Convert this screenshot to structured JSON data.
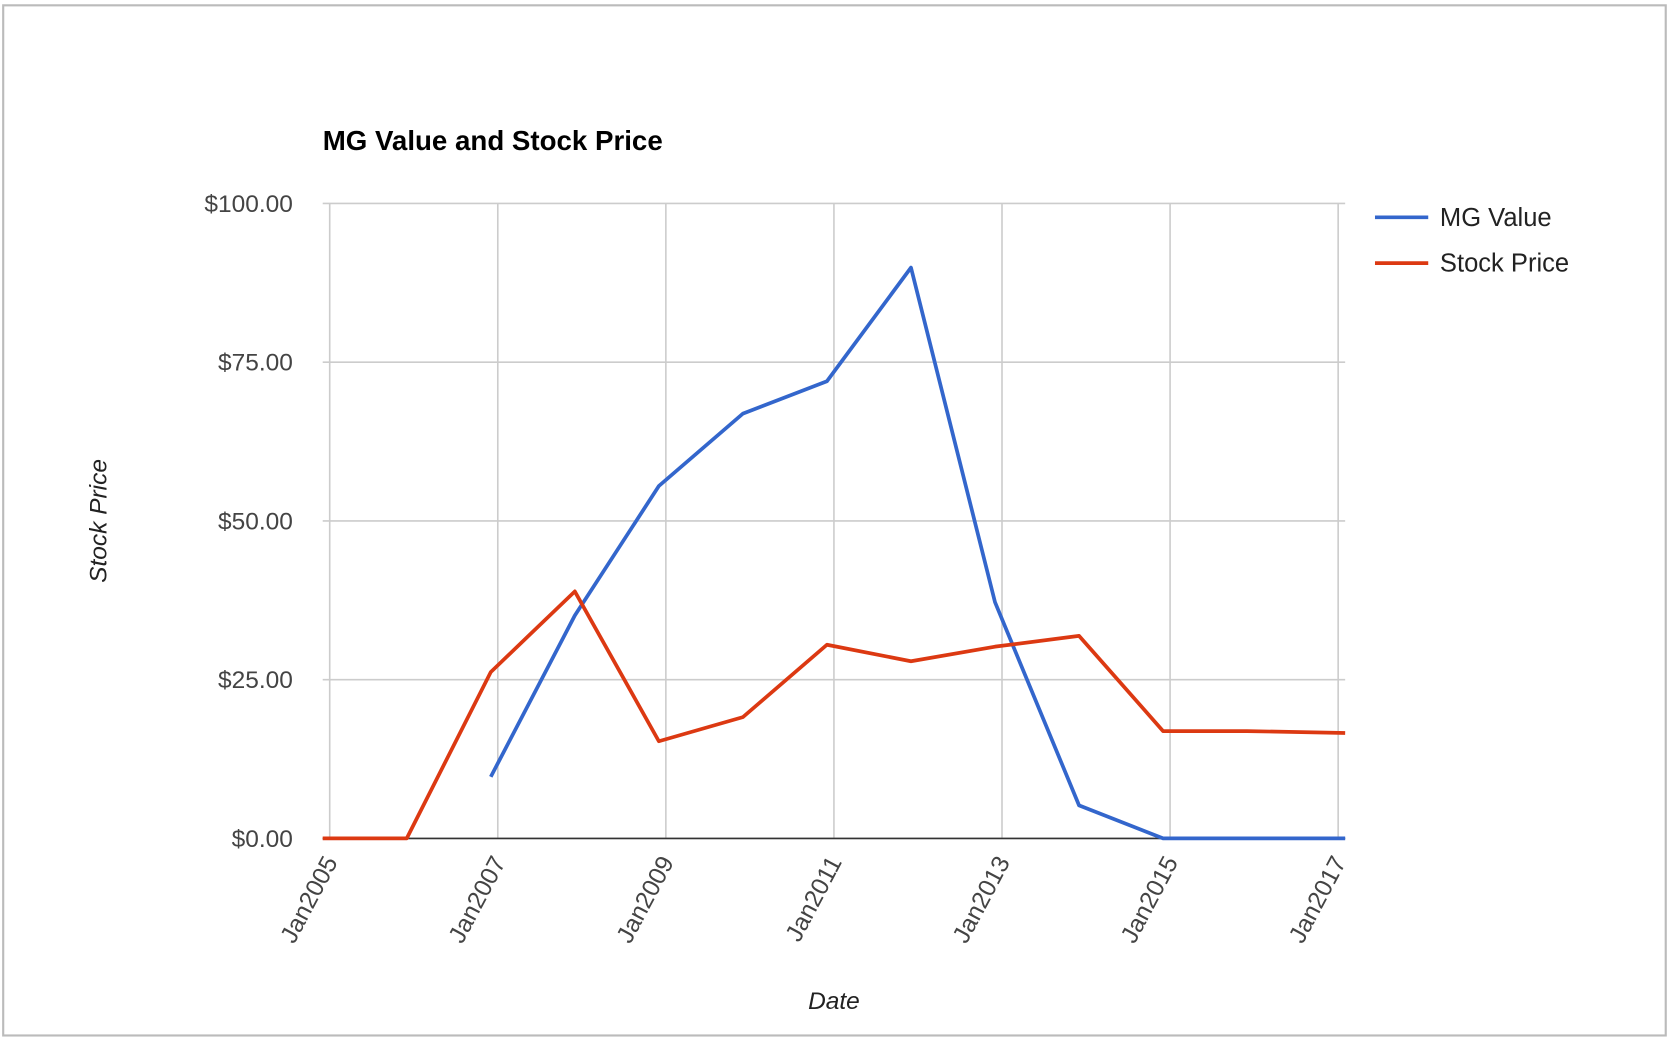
{
  "chart_data": {
    "type": "line",
    "title": "MG Value and Stock Price",
    "x_label": "Date",
    "y_label": "Stock Price",
    "x": [
      "2004-12",
      "2005-12",
      "2006-12",
      "2007-12",
      "2008-12",
      "2009-12",
      "2010-12",
      "2011-12",
      "2012-12",
      "2013-12",
      "2014-12",
      "2015-12",
      "2017-02"
    ],
    "series": [
      {
        "name": "MG Value",
        "color": "#3366cc",
        "values": [
          null,
          null,
          9.7,
          35.1,
          55.5,
          66.9,
          72,
          89.9,
          37.2,
          5.2,
          0,
          0,
          0
        ]
      },
      {
        "name": "Stock Price",
        "color": "#dc3912",
        "values": [
          0,
          0,
          26.2,
          38.9,
          15.3,
          19.1,
          30.5,
          27.9,
          30.2,
          31.9,
          16.9,
          16.9,
          16.6
        ]
      }
    ],
    "xlim": [
      "2004-12",
      "2017-02"
    ],
    "xticks": [
      {
        "value": "2005-01",
        "label": "Jan2005"
      },
      {
        "value": "2007-01",
        "label": "Jan2007"
      },
      {
        "value": "2009-01",
        "label": "Jan2009"
      },
      {
        "value": "2011-01",
        "label": "Jan2011"
      },
      {
        "value": "2013-01",
        "label": "Jan2013"
      },
      {
        "value": "2015-01",
        "label": "Jan2015"
      },
      {
        "value": "2017-01",
        "label": "Jan2017"
      }
    ],
    "ylim": [
      0,
      100
    ],
    "yticks": [
      {
        "value": 0,
        "label": "$0.00"
      },
      {
        "value": 25,
        "label": "$25.00"
      },
      {
        "value": 50,
        "label": "$50.00"
      },
      {
        "value": 75,
        "label": "$75.00"
      },
      {
        "value": 100,
        "label": "$100.00"
      }
    ],
    "grid": true,
    "legend": "right"
  }
}
